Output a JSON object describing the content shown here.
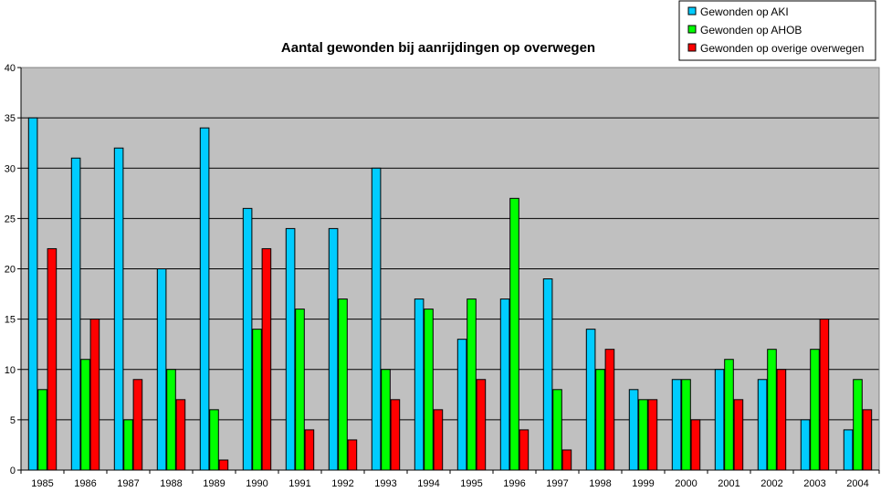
{
  "chart_data": {
    "type": "bar",
    "title": "Aantal gewonden bij aanrijdingen op overwegen",
    "xlabel": "",
    "ylabel": "",
    "ylim": [
      0,
      40
    ],
    "yticks": [
      0,
      5,
      10,
      15,
      20,
      25,
      30,
      35,
      40
    ],
    "grid": true,
    "legend_position": "top-right",
    "plot_background": "#c0c0c0",
    "categories": [
      "1985",
      "1986",
      "1987",
      "1988",
      "1989",
      "1990",
      "1991",
      "1992",
      "1993",
      "1994",
      "1995",
      "1996",
      "1997",
      "1998",
      "1999",
      "2000",
      "2001",
      "2002",
      "2003",
      "2004"
    ],
    "series": [
      {
        "name": "Gewonden op AKI",
        "color": "#00ccff",
        "values": [
          35,
          31,
          32,
          20,
          34,
          26,
          24,
          24,
          30,
          17,
          13,
          17,
          19,
          14,
          8,
          9,
          10,
          9,
          5,
          4
        ]
      },
      {
        "name": "Gewonden op AHOB",
        "color": "#00ff00",
        "values": [
          8,
          11,
          5,
          10,
          6,
          14,
          16,
          17,
          10,
          16,
          17,
          27,
          8,
          10,
          7,
          9,
          11,
          12,
          12,
          9
        ]
      },
      {
        "name": "Gewonden op overige overwegen",
        "color": "#ff0000",
        "values": [
          22,
          15,
          9,
          7,
          1,
          22,
          4,
          3,
          7,
          6,
          9,
          4,
          2,
          12,
          7,
          5,
          7,
          10,
          15,
          6
        ]
      }
    ]
  }
}
